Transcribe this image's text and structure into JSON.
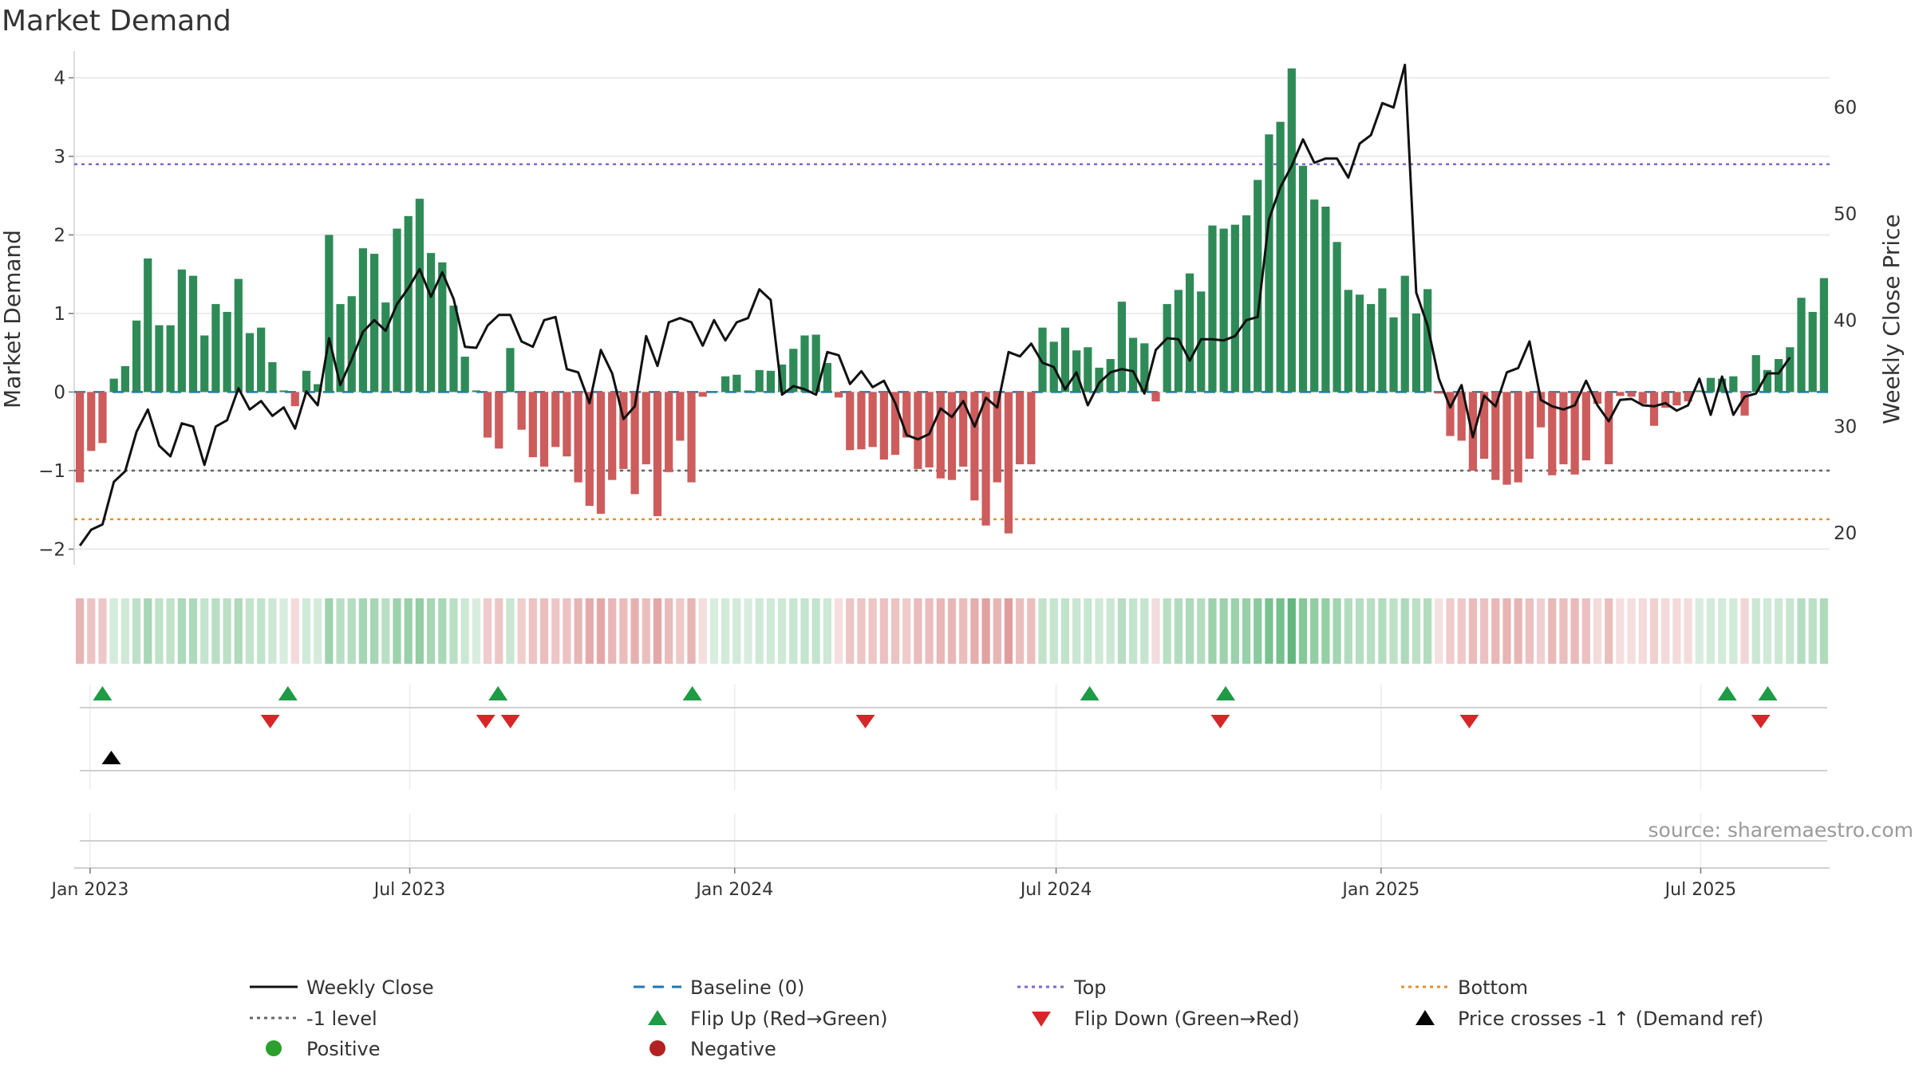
{
  "title": "Market Demand",
  "source": "source: sharemaestro.com",
  "chart_data": {
    "type": "bar",
    "title": "Market Demand",
    "ylabel_left": "Market Demand",
    "ylabel_right": "Weekly Close Price",
    "ylim_left": [
      -2.2,
      4.3
    ],
    "ylim_right": [
      17,
      65
    ],
    "yticks_left": [
      4,
      3,
      2,
      1,
      0,
      -1,
      -2
    ],
    "ytick_labels_left": [
      "4",
      "3",
      "2",
      "1",
      "0",
      "−1",
      "−2"
    ],
    "yticks_right": [
      60,
      50,
      40,
      30,
      20
    ],
    "ytick_labels_right": [
      "60",
      "50",
      "40",
      "30",
      "20"
    ],
    "x_start": "2022-12-23",
    "x_end": "2025-09-12",
    "x_ticks": [
      {
        "date": "2023-01-01",
        "label": "Jan 2023"
      },
      {
        "date": "2023-07-01",
        "label": "Jul 2023"
      },
      {
        "date": "2024-01-01",
        "label": "Jan 2024"
      },
      {
        "date": "2024-07-01",
        "label": "Jul 2024"
      },
      {
        "date": "2025-01-01",
        "label": "Jan 2025"
      },
      {
        "date": "2025-07-01",
        "label": "Jul 2025"
      }
    ],
    "reference_lines": [
      {
        "name": "Top",
        "value": 2.9,
        "color": "#7b68c9"
      },
      {
        "name": "-1 level",
        "value": -1,
        "color": "#666666"
      },
      {
        "name": "Bottom",
        "value": -1.62,
        "color": "#e8902b"
      },
      {
        "name": "Baseline (0)",
        "value": 0,
        "color": "#1f77b4"
      }
    ],
    "demand": [
      -1.15,
      -0.75,
      -0.65,
      0.17,
      0.33,
      0.91,
      1.7,
      0.85,
      0.85,
      1.56,
      1.48,
      0.72,
      1.12,
      1.02,
      1.44,
      0.75,
      0.82,
      0.38,
      0.02,
      -0.18,
      0.27,
      0.1,
      2.0,
      1.12,
      1.22,
      1.83,
      1.76,
      1.14,
      2.08,
      2.24,
      2.46,
      1.77,
      1.65,
      1.1,
      0.45,
      0.02,
      -0.58,
      -0.72,
      0.56,
      -0.48,
      -0.83,
      -0.95,
      -0.7,
      -0.82,
      -1.15,
      -1.45,
      -1.55,
      -1.12,
      -0.98,
      -1.3,
      -0.92,
      -1.58,
      -1.02,
      -0.62,
      -1.15,
      -0.06,
      0.01,
      0.2,
      0.22,
      0.02,
      0.28,
      0.27,
      0.35,
      0.55,
      0.72,
      0.73,
      0.37,
      -0.07,
      -0.74,
      -0.73,
      -0.7,
      -0.86,
      -0.8,
      -0.58,
      -0.98,
      -0.96,
      -1.1,
      -1.12,
      -0.95,
      -1.38,
      -1.7,
      -1.15,
      -1.8,
      -0.92,
      -0.92,
      0.82,
      0.64,
      0.82,
      0.53,
      0.57,
      0.31,
      0.42,
      1.15,
      0.69,
      0.62,
      -0.12,
      1.12,
      1.3,
      1.51,
      1.28,
      2.12,
      2.08,
      2.13,
      2.25,
      2.7,
      3.28,
      3.44,
      4.12,
      2.88,
      2.45,
      2.36,
      1.91,
      1.3,
      1.24,
      1.12,
      1.32,
      0.95,
      1.48,
      1.0,
      1.31,
      -0.02,
      -0.56,
      -0.62,
      -1.0,
      -0.85,
      -1.12,
      -1.18,
      -1.15,
      -0.85,
      -0.45,
      -1.06,
      -0.92,
      -1.05,
      -0.87,
      -0.15,
      -0.92,
      -0.05,
      -0.06,
      -0.15,
      -0.43,
      -0.2,
      -0.17,
      -0.12,
      0.02,
      0.18,
      0.17,
      0.2,
      -0.3,
      0.47,
      0.28,
      0.42,
      0.57,
      1.2,
      1.02,
      1.45
    ],
    "weekly_close": [
      18.8,
      20.3,
      20.8,
      24.8,
      25.8,
      29.5,
      31.6,
      28.2,
      27.2,
      30.3,
      30.0,
      26.4,
      30.0,
      30.6,
      33.6,
      31.6,
      32.4,
      31.0,
      31.8,
      29.8,
      33.3,
      32.0,
      38.3,
      33.9,
      36.3,
      38.9,
      40.0,
      39.0,
      41.5,
      43.0,
      44.8,
      42.2,
      44.5,
      42.0,
      37.5,
      37.4,
      39.5,
      40.5,
      40.5,
      38.0,
      37.5,
      40.0,
      40.3,
      35.4,
      35.1,
      32.2,
      37.2,
      35.0,
      30.7,
      31.9,
      38.5,
      35.7,
      39.8,
      40.2,
      39.8,
      37.6,
      40.0,
      38.1,
      39.8,
      40.2,
      42.9,
      41.9,
      33.0,
      33.8,
      33.5,
      33.0,
      37.0,
      36.7,
      34.0,
      35.2,
      33.7,
      34.3,
      32.2,
      29.2,
      28.8,
      29.3,
      31.7,
      30.9,
      32.4,
      30.0,
      32.7,
      31.8,
      37.0,
      36.6,
      37.8,
      36.0,
      35.6,
      33.5,
      35.1,
      32.0,
      34.1,
      35.1,
      35.4,
      35.2,
      33.1,
      37.2,
      38.3,
      38.2,
      36.2,
      38.2,
      38.2,
      38.1,
      38.5,
      40.0,
      40.3,
      49.5,
      52.5,
      54.5,
      57.0,
      54.8,
      55.2,
      55.2,
      53.4,
      56.6,
      57.4,
      60.4,
      60.0,
      64.0,
      42.6,
      39.5,
      34.5,
      31.8,
      33.9,
      29.0,
      32.9,
      31.9,
      35.1,
      35.5,
      38.0,
      32.5,
      31.9,
      31.6,
      32.0,
      34.3,
      32.0,
      30.5,
      32.5,
      32.6,
      32.0,
      31.9,
      32.2,
      31.5,
      32.0,
      34.5,
      31.1,
      34.7,
      31.1,
      32.8,
      33.1,
      35.0,
      35.0,
      36.5
    ],
    "flip_up_dates": [
      "2023-01-08",
      "2023-04-23",
      "2023-08-20",
      "2023-12-08",
      "2024-07-20",
      "2024-10-05",
      "2025-07-16",
      "2025-08-08"
    ],
    "flip_down_dates": [
      "2023-04-13",
      "2023-08-13",
      "2023-08-27",
      "2024-03-15",
      "2024-10-02",
      "2025-02-20",
      "2025-08-04"
    ],
    "price_cross_dates": [
      "2023-01-13"
    ],
    "legend": [
      {
        "label": "Weekly Close",
        "type": "line"
      },
      {
        "label": "Baseline (0)",
        "type": "dash"
      },
      {
        "label": "Top",
        "type": "dot"
      },
      {
        "label": "Bottom",
        "type": "dot"
      },
      {
        "label": "-1 level",
        "type": "dot"
      },
      {
        "label": "Flip Up (Red→Green)",
        "type": "triangle-up"
      },
      {
        "label": "Flip Down (Green→Red)",
        "type": "triangle-down"
      },
      {
        "label": "Price crosses -1 ↑ (Demand ref)",
        "type": "triangle-up"
      },
      {
        "label": "Positive",
        "type": "circle"
      },
      {
        "label": "Negative",
        "type": "circle"
      }
    ]
  },
  "colors": {
    "positive_bar": "#2e8b57",
    "negative_bar": "#cd5c5c",
    "price_line": "#111111",
    "baseline": "#1f77b4",
    "top": "#7b68c9",
    "minus_one": "#666666",
    "bottom": "#e8902b",
    "flip_up": "#1f9a45",
    "flip_down": "#d62728",
    "price_cross": "#000000",
    "legend_positive": "#2ca02c",
    "legend_negative": "#b22222",
    "grid": "#e6e6e6",
    "axis": "#d0d0d0"
  }
}
